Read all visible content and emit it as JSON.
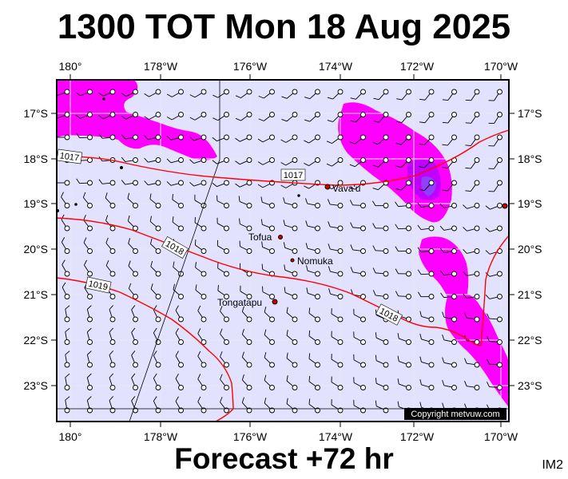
{
  "title": "1300 TOT Mon 18 Aug 2025",
  "footer": "Forecast +72 hr",
  "image_code": "IM2",
  "copyright": "Copyright metvuw.com",
  "lon_labels": [
    "180°",
    "178°W",
    "176°W",
    "174°W",
    "172°W",
    "170°W"
  ],
  "lat_labels": [
    "17°S",
    "18°S",
    "19°S",
    "20°S",
    "21°S",
    "22°S",
    "23°S"
  ],
  "places": [
    {
      "name": "Vava'u",
      "lon": -174.0,
      "lat": -18.65
    },
    {
      "name": "Tofua",
      "lon": -175.05,
      "lat": -19.75
    },
    {
      "name": "Nomuka",
      "lon": -174.8,
      "lat": -20.25
    },
    {
      "name": "Tongatapu",
      "lon": -175.2,
      "lat": -21.15
    }
  ],
  "isobars": [
    {
      "label": "1017"
    },
    {
      "label": "1017"
    },
    {
      "label": "1018"
    },
    {
      "label": "1019"
    },
    {
      "label": "1018"
    }
  ],
  "colors": {
    "ocean": "#e2e2ff",
    "rain_light": "#ff00ff",
    "rain_mid": "#c200ff",
    "rain_heavy": "#9040ff",
    "isobar": "#ff0000",
    "land": "#cc0000"
  },
  "map": {
    "lon_range": [
      -180.3,
      -169.8
    ],
    "lat_range": [
      -23.6,
      -16.25
    ]
  }
}
